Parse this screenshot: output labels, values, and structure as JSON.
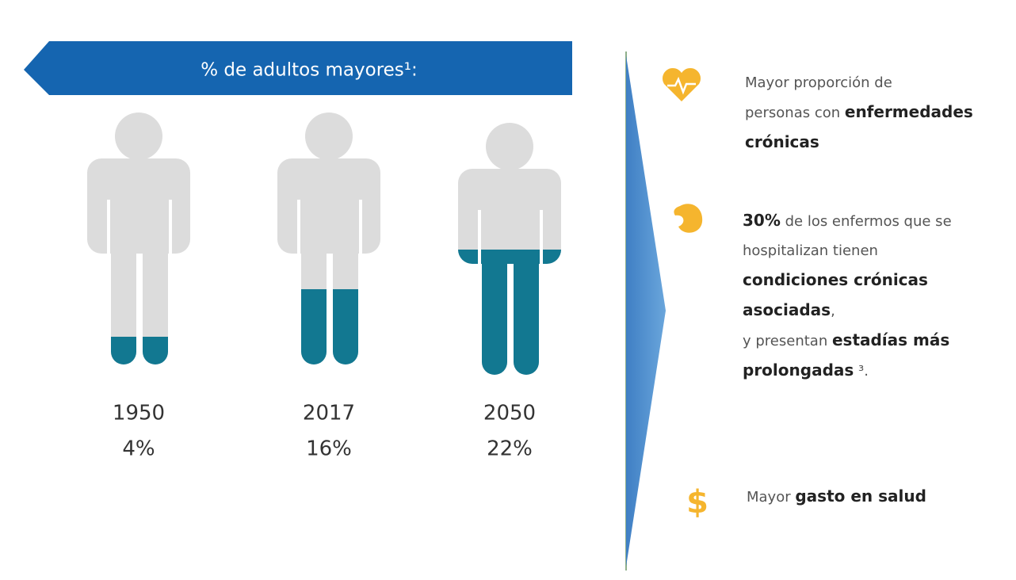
{
  "banner": {
    "title": "% de adultos mayores¹:"
  },
  "figures": [
    {
      "year": "1950",
      "value": "4%"
    },
    {
      "year": "2017",
      "value": "16%"
    },
    {
      "year": "2050",
      "value": "22%"
    }
  ],
  "points": [
    {
      "lines": [
        [
          {
            "text": "Mayor proporción de",
            "bold": false
          }
        ],
        [
          {
            "text": "personas con ",
            "bold": false
          },
          {
            "text": "enfermedades",
            "bold": true
          }
        ],
        [
          {
            "text": "crónicas",
            "bold": true
          }
        ]
      ]
    },
    {
      "lines": [
        [
          {
            "text": "30%",
            "bold": true
          },
          {
            "text": " de los enfermos que se",
            "bold": false
          }
        ],
        [
          {
            "text": "hospitalizan tienen",
            "bold": false
          }
        ],
        [
          {
            "text": "condiciones crónicas",
            "bold": true
          }
        ],
        [
          {
            "text": "asociadas",
            "bold": true
          },
          {
            "text": ",",
            "bold": false
          }
        ],
        [
          {
            "text": "y presentan ",
            "bold": false
          },
          {
            "text": "estadías más",
            "bold": true
          }
        ],
        [
          {
            "text": "prolongadas",
            "bold": true
          },
          {
            "text": " ³.",
            "bold": false
          }
        ]
      ]
    },
    {
      "icon": "$",
      "lines": [
        [
          {
            "text": "Mayor ",
            "bold": false
          },
          {
            "text": "gasto en salud",
            "bold": true
          }
        ]
      ]
    }
  ]
}
